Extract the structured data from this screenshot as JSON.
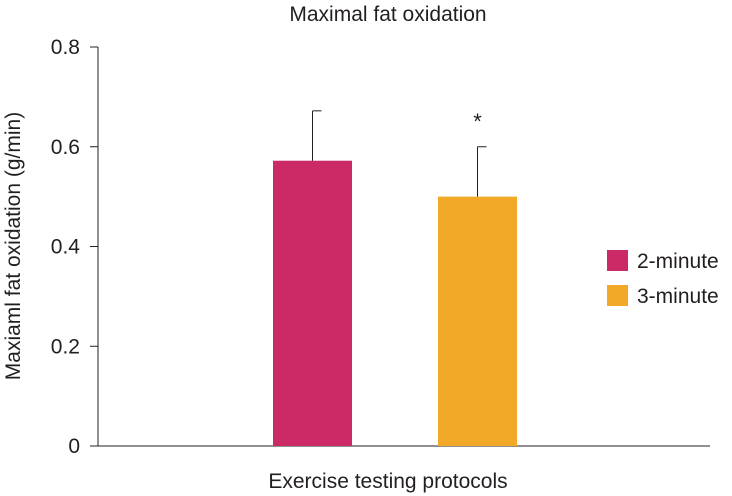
{
  "chart_data": {
    "type": "bar",
    "title": "Maximal fat oxidation",
    "xlabel": "Exercise testing protocols",
    "ylabel": "Maxiaml fat oxidation (g/min)",
    "ylim": [
      0,
      0.8
    ],
    "yticks": [
      "0",
      "0.2",
      "0.4",
      "0.6",
      "0.8"
    ],
    "ytick_values": [
      0,
      0.2,
      0.4,
      0.6,
      0.8
    ],
    "grid": false,
    "legend_position": "right",
    "series": [
      {
        "name": "2-minute",
        "value": 0.572,
        "error": 0.1,
        "color": "#cc2a67",
        "annotation": ""
      },
      {
        "name": "3-minute",
        "value": 0.5,
        "error": 0.1,
        "color": "#f2a928",
        "annotation": "*"
      }
    ]
  }
}
